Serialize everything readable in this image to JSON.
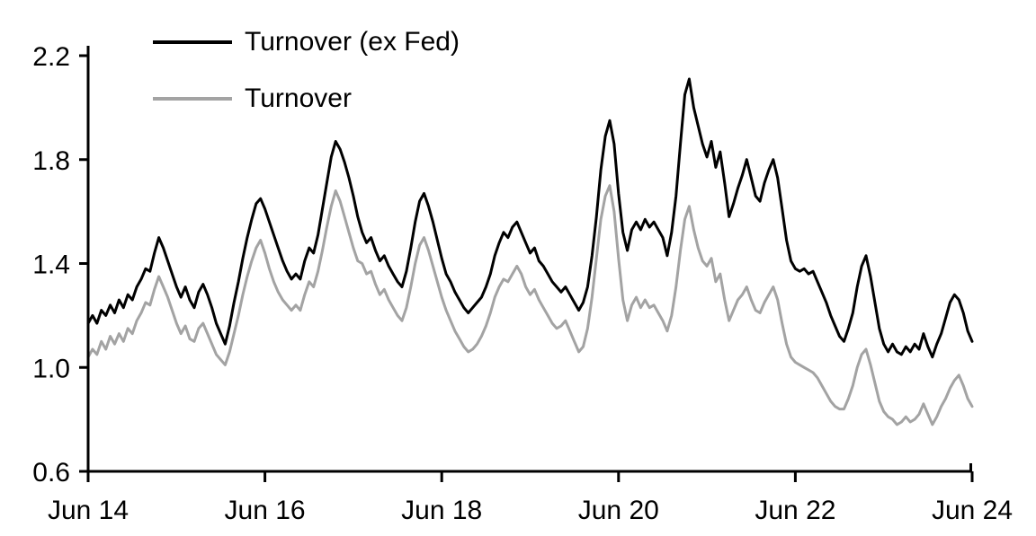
{
  "meta": {
    "background_color": "#ffffff",
    "axis_color": "#000000",
    "text_color": "#000000"
  },
  "chart_data": {
    "type": "line",
    "title": "",
    "xlabel": "",
    "ylabel": "",
    "grid": false,
    "legend_position": "top-left",
    "xlim": [
      2014.45,
      2024.45
    ],
    "ylim": [
      0.6,
      2.2
    ],
    "y_ticks": [
      0.6,
      1.0,
      1.4,
      1.8,
      2.2
    ],
    "x_ticks": {
      "values": [
        2014.45,
        2016.45,
        2018.45,
        2020.45,
        2022.45,
        2024.45
      ],
      "labels": [
        "Jun 14",
        "Jun 16",
        "Jun 18",
        "Jun 20",
        "Jun 22",
        "Jun 24"
      ]
    },
    "x": [
      2014.45,
      2014.5,
      2014.55,
      2014.6,
      2014.65,
      2014.7,
      2014.75,
      2014.8,
      2014.85,
      2014.9,
      2014.95,
      2015.0,
      2015.05,
      2015.1,
      2015.15,
      2015.2,
      2015.25,
      2015.3,
      2015.35,
      2015.4,
      2015.45,
      2015.5,
      2015.55,
      2015.6,
      2015.65,
      2015.7,
      2015.75,
      2015.8,
      2015.85,
      2015.9,
      2015.95,
      2016.0,
      2016.05,
      2016.1,
      2016.15,
      2016.2,
      2016.25,
      2016.3,
      2016.35,
      2016.4,
      2016.45,
      2016.5,
      2016.55,
      2016.6,
      2016.65,
      2016.7,
      2016.75,
      2016.8,
      2016.85,
      2016.9,
      2016.95,
      2017.0,
      2017.05,
      2017.1,
      2017.15,
      2017.2,
      2017.25,
      2017.3,
      2017.35,
      2017.4,
      2017.45,
      2017.5,
      2017.55,
      2017.6,
      2017.65,
      2017.7,
      2017.75,
      2017.8,
      2017.85,
      2017.9,
      2017.95,
      2018.0,
      2018.05,
      2018.1,
      2018.15,
      2018.2,
      2018.25,
      2018.3,
      2018.35,
      2018.4,
      2018.45,
      2018.5,
      2018.55,
      2018.6,
      2018.65,
      2018.7,
      2018.75,
      2018.8,
      2018.85,
      2018.9,
      2018.95,
      2019.0,
      2019.05,
      2019.1,
      2019.15,
      2019.2,
      2019.25,
      2019.3,
      2019.35,
      2019.4,
      2019.45,
      2019.5,
      2019.55,
      2019.6,
      2019.65,
      2019.7,
      2019.75,
      2019.8,
      2019.85,
      2019.9,
      2019.95,
      2020.0,
      2020.05,
      2020.1,
      2020.15,
      2020.2,
      2020.25,
      2020.3,
      2020.35,
      2020.4,
      2020.45,
      2020.5,
      2020.55,
      2020.6,
      2020.65,
      2020.7,
      2020.75,
      2020.8,
      2020.85,
      2020.9,
      2020.95,
      2021.0,
      2021.05,
      2021.1,
      2021.15,
      2021.2,
      2021.25,
      2021.3,
      2021.35,
      2021.4,
      2021.45,
      2021.5,
      2021.55,
      2021.6,
      2021.65,
      2021.7,
      2021.75,
      2021.8,
      2021.85,
      2021.9,
      2021.95,
      2022.0,
      2022.05,
      2022.1,
      2022.15,
      2022.2,
      2022.25,
      2022.3,
      2022.35,
      2022.4,
      2022.45,
      2022.5,
      2022.55,
      2022.6,
      2022.65,
      2022.7,
      2022.75,
      2022.8,
      2022.85,
      2022.9,
      2022.95,
      2023.0,
      2023.05,
      2023.1,
      2023.15,
      2023.2,
      2023.25,
      2023.3,
      2023.35,
      2023.4,
      2023.45,
      2023.5,
      2023.55,
      2023.6,
      2023.65,
      2023.7,
      2023.75,
      2023.8,
      2023.85,
      2023.9,
      2023.95,
      2024.0,
      2024.05,
      2024.1,
      2024.15,
      2024.2,
      2024.25,
      2024.3,
      2024.35,
      2024.4,
      2024.45
    ],
    "series": [
      {
        "name": "Turnover (ex Fed)",
        "color": "#000000",
        "values": [
          1.17,
          1.2,
          1.17,
          1.22,
          1.2,
          1.24,
          1.21,
          1.26,
          1.23,
          1.28,
          1.26,
          1.31,
          1.34,
          1.38,
          1.37,
          1.44,
          1.5,
          1.46,
          1.41,
          1.36,
          1.31,
          1.27,
          1.31,
          1.26,
          1.23,
          1.29,
          1.32,
          1.28,
          1.23,
          1.17,
          1.13,
          1.09,
          1.16,
          1.25,
          1.33,
          1.42,
          1.5,
          1.57,
          1.63,
          1.65,
          1.61,
          1.56,
          1.51,
          1.46,
          1.41,
          1.37,
          1.34,
          1.36,
          1.34,
          1.41,
          1.46,
          1.44,
          1.51,
          1.61,
          1.71,
          1.81,
          1.87,
          1.84,
          1.79,
          1.73,
          1.66,
          1.58,
          1.52,
          1.48,
          1.5,
          1.45,
          1.41,
          1.43,
          1.39,
          1.36,
          1.33,
          1.31,
          1.37,
          1.46,
          1.56,
          1.64,
          1.67,
          1.62,
          1.56,
          1.49,
          1.42,
          1.36,
          1.33,
          1.29,
          1.26,
          1.23,
          1.21,
          1.23,
          1.25,
          1.27,
          1.31,
          1.36,
          1.43,
          1.48,
          1.52,
          1.5,
          1.54,
          1.56,
          1.52,
          1.48,
          1.44,
          1.46,
          1.41,
          1.39,
          1.36,
          1.33,
          1.31,
          1.29,
          1.31,
          1.28,
          1.25,
          1.22,
          1.25,
          1.31,
          1.43,
          1.58,
          1.76,
          1.89,
          1.95,
          1.86,
          1.67,
          1.52,
          1.45,
          1.53,
          1.56,
          1.53,
          1.57,
          1.54,
          1.56,
          1.53,
          1.5,
          1.43,
          1.52,
          1.66,
          1.86,
          2.05,
          2.11,
          2.0,
          1.93,
          1.86,
          1.81,
          1.87,
          1.77,
          1.83,
          1.71,
          1.58,
          1.63,
          1.69,
          1.74,
          1.8,
          1.73,
          1.66,
          1.64,
          1.71,
          1.76,
          1.8,
          1.73,
          1.61,
          1.49,
          1.41,
          1.38,
          1.37,
          1.38,
          1.36,
          1.37,
          1.33,
          1.29,
          1.25,
          1.2,
          1.16,
          1.12,
          1.1,
          1.15,
          1.21,
          1.31,
          1.39,
          1.43,
          1.35,
          1.25,
          1.15,
          1.09,
          1.06,
          1.09,
          1.06,
          1.05,
          1.08,
          1.06,
          1.09,
          1.07,
          1.13,
          1.08,
          1.04,
          1.09,
          1.13,
          1.19,
          1.25,
          1.28,
          1.26,
          1.21,
          1.14,
          1.1
        ]
      },
      {
        "name": "Turnover",
        "color": "#a3a3a3",
        "values": [
          1.04,
          1.07,
          1.05,
          1.1,
          1.07,
          1.12,
          1.09,
          1.13,
          1.1,
          1.15,
          1.13,
          1.18,
          1.21,
          1.25,
          1.24,
          1.3,
          1.35,
          1.31,
          1.27,
          1.22,
          1.17,
          1.13,
          1.16,
          1.11,
          1.1,
          1.15,
          1.17,
          1.13,
          1.09,
          1.05,
          1.03,
          1.01,
          1.06,
          1.13,
          1.2,
          1.28,
          1.35,
          1.41,
          1.46,
          1.49,
          1.44,
          1.38,
          1.33,
          1.29,
          1.26,
          1.24,
          1.22,
          1.24,
          1.22,
          1.28,
          1.33,
          1.31,
          1.37,
          1.45,
          1.54,
          1.62,
          1.68,
          1.64,
          1.58,
          1.52,
          1.46,
          1.41,
          1.4,
          1.36,
          1.37,
          1.32,
          1.28,
          1.3,
          1.26,
          1.23,
          1.2,
          1.18,
          1.23,
          1.31,
          1.4,
          1.47,
          1.5,
          1.45,
          1.39,
          1.33,
          1.27,
          1.22,
          1.18,
          1.14,
          1.11,
          1.08,
          1.06,
          1.07,
          1.09,
          1.12,
          1.16,
          1.21,
          1.27,
          1.31,
          1.34,
          1.33,
          1.36,
          1.39,
          1.36,
          1.31,
          1.28,
          1.3,
          1.26,
          1.23,
          1.2,
          1.17,
          1.15,
          1.16,
          1.18,
          1.14,
          1.1,
          1.06,
          1.08,
          1.15,
          1.27,
          1.42,
          1.57,
          1.66,
          1.7,
          1.6,
          1.42,
          1.26,
          1.18,
          1.24,
          1.27,
          1.23,
          1.26,
          1.23,
          1.24,
          1.21,
          1.18,
          1.14,
          1.2,
          1.31,
          1.45,
          1.57,
          1.62,
          1.53,
          1.46,
          1.41,
          1.39,
          1.42,
          1.33,
          1.36,
          1.26,
          1.18,
          1.22,
          1.26,
          1.28,
          1.31,
          1.26,
          1.22,
          1.21,
          1.25,
          1.28,
          1.31,
          1.26,
          1.17,
          1.09,
          1.04,
          1.02,
          1.01,
          1.0,
          0.99,
          0.98,
          0.96,
          0.93,
          0.9,
          0.87,
          0.85,
          0.84,
          0.84,
          0.88,
          0.93,
          1.0,
          1.05,
          1.07,
          1.01,
          0.94,
          0.87,
          0.83,
          0.81,
          0.8,
          0.78,
          0.79,
          0.81,
          0.79,
          0.8,
          0.82,
          0.86,
          0.82,
          0.78,
          0.81,
          0.85,
          0.88,
          0.92,
          0.95,
          0.97,
          0.93,
          0.88,
          0.85
        ]
      }
    ]
  }
}
